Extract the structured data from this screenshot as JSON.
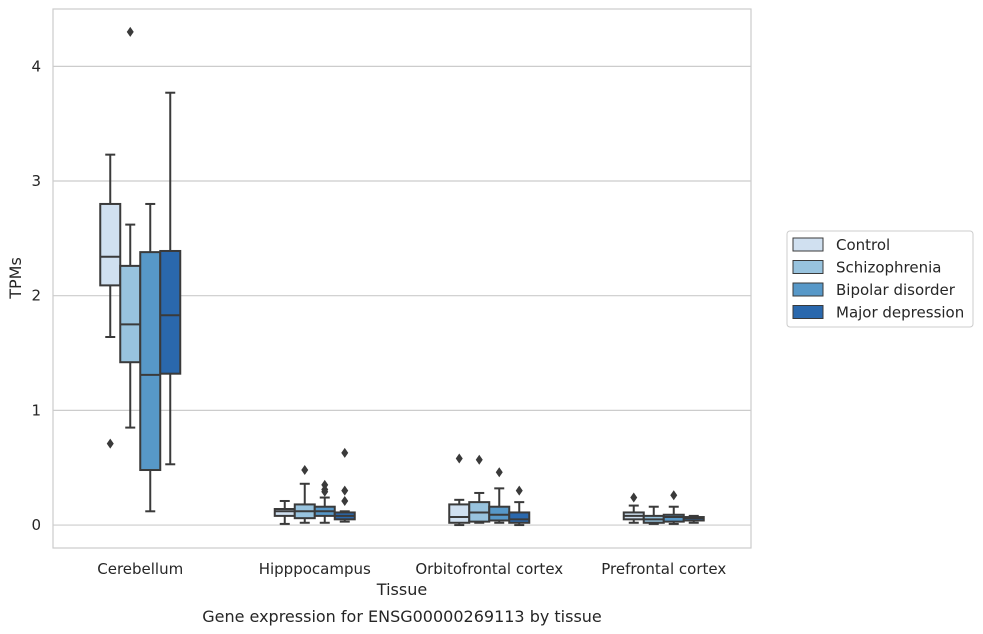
{
  "chart_data": {
    "type": "box",
    "title": "",
    "caption": "Gene expression for ENSG00000269113 by tissue",
    "xlabel": "Tissue",
    "ylabel": "TPMs",
    "ylim": [
      -0.2,
      4.5
    ],
    "yticks": [
      0,
      1,
      2,
      3,
      4
    ],
    "grid": true,
    "legend_position": "right",
    "categories": [
      "Cerebellum",
      "Hipppocampus",
      "Orbitofrontal cortex",
      "Prefrontal cortex"
    ],
    "series": [
      {
        "name": "Control",
        "color": "#d0e0f0",
        "boxes": [
          {
            "whisker_low": 1.64,
            "q1": 2.09,
            "median": 2.34,
            "q3": 2.8,
            "whisker_high": 3.23,
            "outliers": [
              0.71
            ]
          },
          {
            "whisker_low": 0.01,
            "q1": 0.08,
            "median": 0.12,
            "q3": 0.14,
            "whisker_high": 0.21,
            "outliers": []
          },
          {
            "whisker_low": 0.0,
            "q1": 0.02,
            "median": 0.07,
            "q3": 0.18,
            "whisker_high": 0.22,
            "outliers": [
              0.58
            ]
          },
          {
            "whisker_low": 0.02,
            "q1": 0.05,
            "median": 0.08,
            "q3": 0.11,
            "whisker_high": 0.17,
            "outliers": [
              0.24
            ]
          }
        ]
      },
      {
        "name": "Schizophrenia",
        "color": "#98c3de",
        "boxes": [
          {
            "whisker_low": 0.85,
            "q1": 1.42,
            "median": 1.75,
            "q3": 2.26,
            "whisker_high": 2.62,
            "outliers": [
              4.3
            ]
          },
          {
            "whisker_low": 0.02,
            "q1": 0.06,
            "median": 0.12,
            "q3": 0.18,
            "whisker_high": 0.36,
            "outliers": [
              0.48
            ]
          },
          {
            "whisker_low": 0.02,
            "q1": 0.03,
            "median": 0.11,
            "q3": 0.2,
            "whisker_high": 0.28,
            "outliers": [
              0.57
            ]
          },
          {
            "whisker_low": 0.01,
            "q1": 0.02,
            "median": 0.05,
            "q3": 0.08,
            "whisker_high": 0.16,
            "outliers": []
          }
        ]
      },
      {
        "name": "Bipolar disorder",
        "color": "#5798c8",
        "boxes": [
          {
            "whisker_low": 0.12,
            "q1": 0.48,
            "median": 1.31,
            "q3": 2.38,
            "whisker_high": 2.8,
            "outliers": []
          },
          {
            "whisker_low": 0.02,
            "q1": 0.08,
            "median": 0.12,
            "q3": 0.16,
            "whisker_high": 0.24,
            "outliers": [
              0.29,
              0.31,
              0.35
            ]
          },
          {
            "whisker_low": 0.02,
            "q1": 0.04,
            "median": 0.09,
            "q3": 0.16,
            "whisker_high": 0.32,
            "outliers": [
              0.46
            ]
          },
          {
            "whisker_low": 0.01,
            "q1": 0.03,
            "median": 0.07,
            "q3": 0.09,
            "whisker_high": 0.16,
            "outliers": [
              0.26
            ]
          }
        ]
      },
      {
        "name": "Major depression",
        "color": "#2a68ad",
        "boxes": [
          {
            "whisker_low": 0.53,
            "q1": 1.32,
            "median": 1.83,
            "q3": 2.39,
            "whisker_high": 3.77,
            "outliers": []
          },
          {
            "whisker_low": 0.03,
            "q1": 0.05,
            "median": 0.08,
            "q3": 0.11,
            "whisker_high": 0.12,
            "outliers": [
              0.21,
              0.3,
              0.63
            ]
          },
          {
            "whisker_low": 0.0,
            "q1": 0.02,
            "median": 0.05,
            "q3": 0.11,
            "whisker_high": 0.2,
            "outliers": [
              0.3
            ]
          },
          {
            "whisker_low": 0.02,
            "q1": 0.04,
            "median": 0.06,
            "q3": 0.07,
            "whisker_high": 0.08,
            "outliers": []
          }
        ]
      }
    ]
  }
}
